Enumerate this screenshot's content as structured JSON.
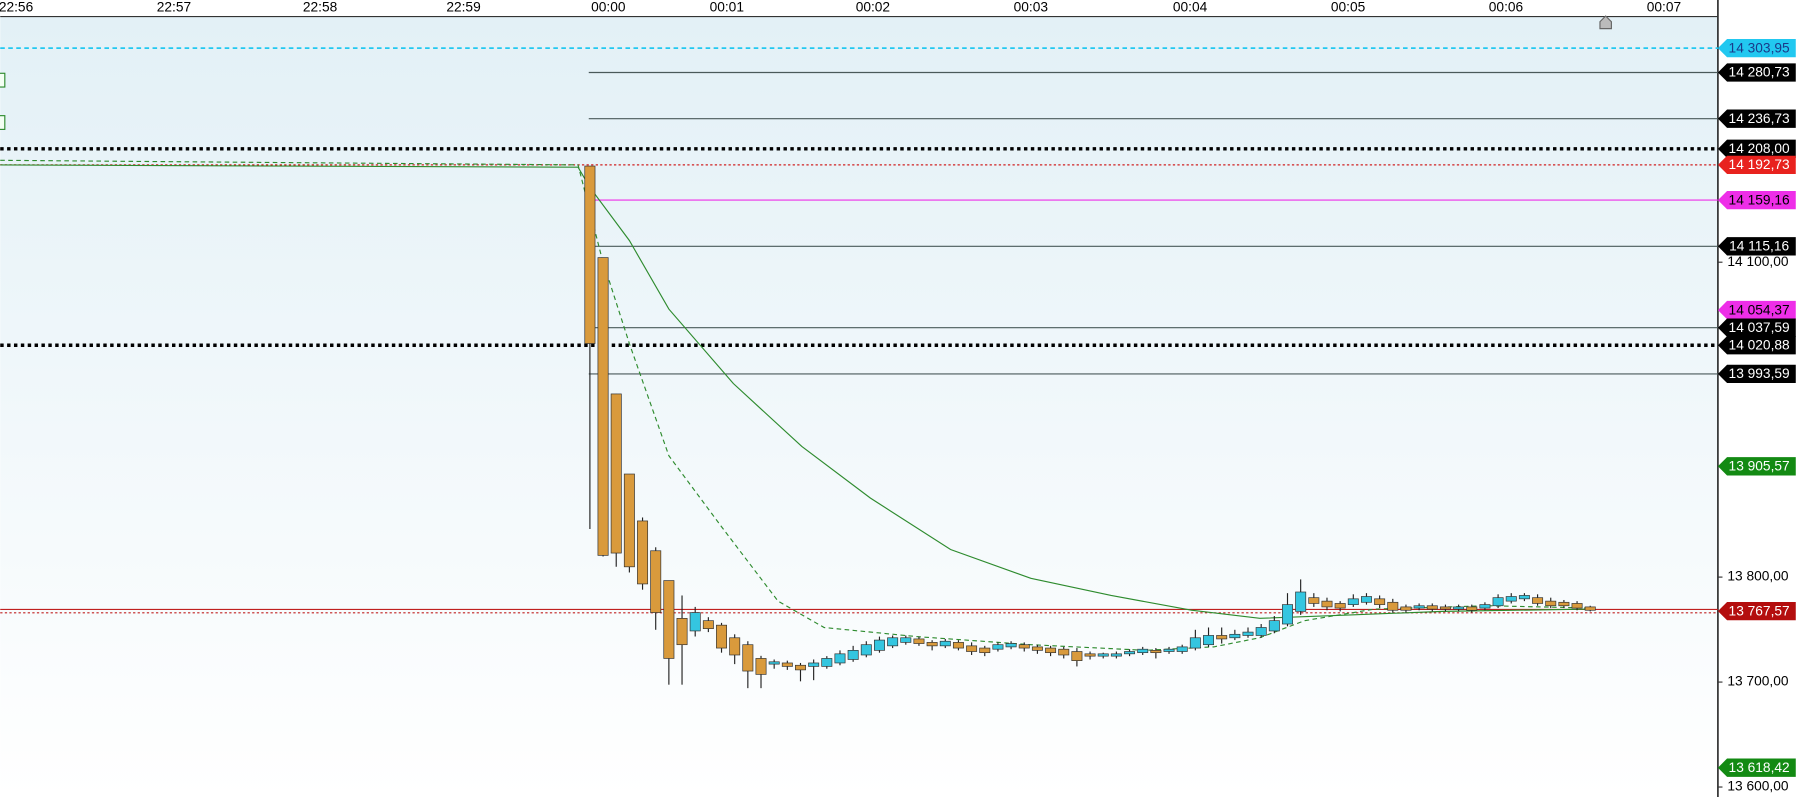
{
  "chart_data": {
    "type": "candlestick",
    "up_color": "#34c6e0",
    "down_color": "#d99a3c",
    "x": [
      0,
      1,
      2,
      3,
      4,
      5,
      6,
      7,
      8,
      9,
      10,
      11,
      12,
      13,
      14,
      15,
      16,
      17,
      18,
      19,
      20,
      21,
      22,
      23,
      24,
      25,
      26,
      27,
      28,
      29,
      30,
      31,
      32,
      33,
      34,
      35,
      36,
      37,
      38,
      39,
      40,
      41,
      42,
      43,
      44,
      45,
      46,
      47,
      48,
      49,
      50,
      51,
      52,
      53,
      54,
      55,
      56,
      57,
      58,
      59,
      60,
      61,
      62,
      63,
      64,
      65,
      66,
      67,
      68,
      69,
      70,
      71,
      72,
      73,
      74,
      75,
      76
    ],
    "open": [
      14191.6,
      14104.4,
      13974.5,
      13898.2,
      13853.5,
      13825.1,
      13796.7,
      13760.7,
      13748.7,
      13758.5,
      13754.2,
      13742.2,
      13735.6,
      13722.5,
      13717.1,
      13718.2,
      13716.0,
      13714.9,
      13714.9,
      13718.2,
      13721.5,
      13725.8,
      13730.2,
      13734.5,
      13737.8,
      13741.1,
      13737.8,
      13734.5,
      13737.8,
      13734.5,
      13732.4,
      13731.3,
      13733.5,
      13735.6,
      13733.5,
      13732.4,
      13731.3,
      13729.1,
      13726.9,
      13724.7,
      13724.7,
      13726.9,
      13728.0,
      13730.2,
      13729.1,
      13729.1,
      13732.4,
      13735.6,
      13744.4,
      13742.2,
      13744.4,
      13744.4,
      13748.7,
      13755.3,
      13767.3,
      13780.4,
      13777.1,
      13774.9,
      13773.8,
      13776.0,
      13779.3,
      13776.0,
      13771.6,
      13770.5,
      13772.7,
      13771.6,
      13769.5,
      13771.6,
      13770.5,
      13772.7,
      13777.1,
      13779.3,
      13780.4,
      13777.1,
      13776.0,
      13774.9,
      13771.6
    ],
    "high": [
      14191.6,
      14104.4,
      13974.5,
      13898.2,
      13856.8,
      13828.4,
      13796.7,
      13782.5,
      13771.6,
      13761.8,
      13756.4,
      13745.5,
      13738.9,
      13725.0,
      13721.5,
      13720.4,
      13718.2,
      13721.5,
      13724.7,
      13730.2,
      13734.5,
      13738.9,
      13743.3,
      13744.4,
      13744.4,
      13743.3,
      13739.9,
      13741.1,
      13739.9,
      13737.8,
      13734.5,
      13737.8,
      13738.9,
      13737.8,
      13735.6,
      13734.5,
      13733.5,
      13732.4,
      13729.1,
      13728.0,
      13729.1,
      13731.3,
      13733.5,
      13732.4,
      13733.5,
      13735.6,
      13749.8,
      13752.0,
      13752.0,
      13749.8,
      13752.0,
      13755.3,
      13762.9,
      13784.7,
      13797.8,
      13784.7,
      13780.4,
      13777.1,
      13783.6,
      13784.7,
      13782.5,
      13779.3,
      13773.8,
      13774.9,
      13774.9,
      13773.8,
      13773.8,
      13773.8,
      13776.0,
      13783.6,
      13784.7,
      13784.7,
      13783.6,
      13780.4,
      13778.2,
      13777.1,
      13772.7
    ],
    "low": [
      13845.8,
      13819.6,
      13809.8,
      13804.4,
      13788.0,
      13749.8,
      13697.5,
      13697.5,
      13743.4,
      13747.6,
      13728.0,
      13717.1,
      13694.2,
      13694.2,
      13712.7,
      13711.6,
      13700.7,
      13701.8,
      13712.7,
      13716.0,
      13719.3,
      13723.6,
      13728.0,
      13732.4,
      13735.6,
      13734.5,
      13730.2,
      13732.4,
      13730.2,
      13725.8,
      13724.7,
      13729.1,
      13731.3,
      13729.1,
      13726.9,
      13724.7,
      13722.5,
      13714.9,
      13721.5,
      13722.5,
      13722.5,
      13724.7,
      13725.8,
      13722.5,
      13726.9,
      13726.9,
      13730.2,
      13733.5,
      13736.7,
      13740.0,
      13742.2,
      13742.2,
      13746.5,
      13753.1,
      13764.0,
      13771.6,
      13768.4,
      13767.3,
      13771.6,
      13773.8,
      13770.5,
      13766.2,
      13766.2,
      13768.4,
      13767.3,
      13767.3,
      13767.3,
      13766.2,
      13768.4,
      13770.5,
      13774.9,
      13777.1,
      13772.7,
      13770.5,
      13770.5,
      13768.4,
      13767.3
    ],
    "close": [
      14022.5,
      13820.7,
      13822.9,
      13809.8,
      13793.5,
      13766.2,
      13722.5,
      13735.6,
      13766.2,
      13750.9,
      13732.4,
      13725.8,
      13710.5,
      13707.3,
      13719.3,
      13714.9,
      13711.6,
      13718.2,
      13722.5,
      13726.9,
      13730.2,
      13735.6,
      13740.0,
      13742.2,
      13742.2,
      13736.7,
      13734.5,
      13738.9,
      13732.4,
      13729.1,
      13728.0,
      13735.6,
      13736.7,
      13732.4,
      13730.2,
      13728.0,
      13725.8,
      13720.4,
      13724.7,
      13726.9,
      13726.9,
      13729.1,
      13731.3,
      13728.0,
      13731.3,
      13733.5,
      13742.2,
      13744.4,
      13741.1,
      13745.5,
      13747.6,
      13752.0,
      13758.5,
      13773.8,
      13785.8,
      13774.9,
      13771.6,
      13770.5,
      13779.3,
      13781.5,
      13773.8,
      13768.4,
      13768.4,
      13772.7,
      13769.5,
      13769.5,
      13771.6,
      13768.4,
      13773.8,
      13780.4,
      13781.5,
      13782.5,
      13774.9,
      13772.7,
      13772.7,
      13770.5,
      13768.4
    ],
    "lines": [
      {
        "color": "#2e8b2e",
        "style": "solid",
        "x": [
          -44.8,
          -0.9,
          0,
          3.0,
          6,
          10.9,
          16.1,
          21.3,
          27.4,
          33.5,
          39.6,
          45.7,
          50.9,
          57.8,
          64.8,
          76.1
        ],
        "values": [
          14192.7,
          14190.5,
          14171.3,
          14120.7,
          14055.3,
          13984.4,
          13924.4,
          13875.3,
          13826.2,
          13798.9,
          13782.5,
          13768.4,
          13760.7,
          13764.0,
          13767.3,
          13769.5
        ]
      },
      {
        "color": "#2e8b2e",
        "style": "dashed",
        "x": [
          -44.8,
          -0.9,
          0.9,
          3.0,
          6,
          10,
          14.3,
          17.8,
          24.8,
          33.5,
          42.2,
          47.4,
          50.9,
          54.3,
          59.6,
          68.3,
          76.1
        ],
        "values": [
          14197.1,
          14192.7,
          14104.4,
          14022.5,
          13915.6,
          13848.0,
          13777.1,
          13752.0,
          13743.3,
          13735.6,
          13730.2,
          13733.5,
          13742.2,
          13758.5,
          13769.5,
          13772.7,
          13770.5
        ]
      }
    ],
    "levels": [
      {
        "value": 14303.95,
        "label": "14 303,95",
        "color": "#22c8f0",
        "text_color": "#1a3a8a",
        "line": "dashed",
        "line_color": "#22c8f0"
      },
      {
        "value": 14280.73,
        "label": "14 280,73",
        "color": "#000000",
        "text_color": "#ffffff",
        "line": "segment",
        "line_color": "#4a5a5a"
      },
      {
        "value": 14236.73,
        "label": "14 236,73",
        "color": "#000000",
        "text_color": "#ffffff",
        "line": "segment",
        "line_color": "#4a5a5a"
      },
      {
        "value": 14208.0,
        "label": "14 208,00",
        "color": "#000000",
        "text_color": "#ffffff",
        "line": "dotted",
        "line_color": "#000000"
      },
      {
        "value": 14192.73,
        "label": "14 192,73",
        "color": "#e8221e",
        "text_color": "#ffffff",
        "line": "thin-dotted",
        "line_color": "#d02020"
      },
      {
        "value": 14159.16,
        "label": "14 159,16",
        "color": "#ee2ee8",
        "text_color": "#000000",
        "line": "segment",
        "line_color": "#ee2ee8"
      },
      {
        "value": 14115.16,
        "label": "14 115,16",
        "color": "#000000",
        "text_color": "#ffffff",
        "line": "segment",
        "line_color": "#4a5a5a"
      },
      {
        "value": 14054.37,
        "label": "14 054,37",
        "color": "#ee2ee8",
        "text_color": "#000000"
      },
      {
        "value": 14037.59,
        "label": "14 037,59",
        "color": "#000000",
        "text_color": "#ffffff",
        "line": "segment",
        "line_color": "#4a5a5a"
      },
      {
        "value": 14020.88,
        "label": "14 020,88",
        "color": "#000000",
        "text_color": "#ffffff",
        "line": "dotted",
        "line_color": "#000000"
      },
      {
        "value": 13993.59,
        "label": "13 993,59",
        "color": "#000000",
        "text_color": "#ffffff",
        "line": "segment",
        "line_color": "#4a5a5a"
      },
      {
        "value": 13905.57,
        "label": "13 905,57",
        "color": "#138a13",
        "text_color": "#ffffff"
      },
      {
        "value": 13767.57,
        "label": "13 767,57",
        "color": "#b40e0e",
        "text_color": "#ffffff",
        "line": "double",
        "line_color": "#c02020"
      },
      {
        "value": 13618.42,
        "label": "13 618,42",
        "color": "#138a13",
        "text_color": "#ffffff"
      }
    ],
    "xlim": [
      -44.8,
      85.7
    ],
    "xticks": [
      {
        "value": -43.6,
        "label": "22:56"
      },
      {
        "value": -31.6,
        "label": "22:57"
      },
      {
        "value": -20.5,
        "label": "22:58"
      },
      {
        "value": -9.6,
        "label": "22:59"
      },
      {
        "value": 1.4,
        "label": "00:00"
      },
      {
        "value": 10.4,
        "label": "00:01"
      },
      {
        "value": 21.5,
        "label": "00:02"
      },
      {
        "value": 33.5,
        "label": "00:03"
      },
      {
        "value": 45.6,
        "label": "00:04"
      },
      {
        "value": 57.6,
        "label": "00:05"
      },
      {
        "value": 69.6,
        "label": "00:06"
      },
      {
        "value": 81.6,
        "label": "00:07"
      }
    ],
    "ylim": [
      13590.5,
      14349.8
    ],
    "yticks": [
      {
        "value": 14100,
        "label": "14 100,00"
      },
      {
        "value": 13800,
        "label": "13 800,00"
      },
      {
        "value": 13700,
        "label": "13 700,00"
      },
      {
        "value": 13600,
        "label": "13 600,00"
      }
    ]
  }
}
